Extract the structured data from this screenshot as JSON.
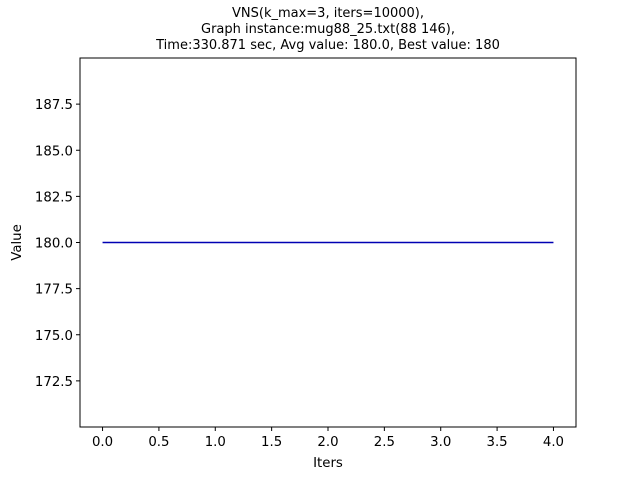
{
  "chart_data": {
    "type": "line",
    "title_lines": [
      "VNS(k_max=3, iters=10000),",
      "Graph instance:mug88_25.txt(88 146),",
      "Time:330.871 sec, Avg value: 180.0, Best value: 180"
    ],
    "xlabel": "Iters",
    "ylabel": "Value",
    "xlim": [
      -0.2,
      4.2
    ],
    "ylim": [
      170.0,
      190.0
    ],
    "xticks": [
      0.0,
      0.5,
      1.0,
      1.5,
      2.0,
      2.5,
      3.0,
      3.5,
      4.0
    ],
    "xtick_labels": [
      "0.0",
      "0.5",
      "1.0",
      "1.5",
      "2.0",
      "2.5",
      "3.0",
      "3.5",
      "4.0"
    ],
    "yticks": [
      172.5,
      175.0,
      177.5,
      180.0,
      182.5,
      185.0,
      187.5
    ],
    "ytick_labels": [
      "172.5",
      "175.0",
      "177.5",
      "180.0",
      "182.5",
      "185.0",
      "187.5"
    ],
    "grid": false,
    "series": [
      {
        "x": [
          0,
          1,
          2,
          3,
          4
        ],
        "y": [
          180,
          180,
          180,
          180,
          180
        ],
        "color": "#0000b3"
      }
    ]
  }
}
